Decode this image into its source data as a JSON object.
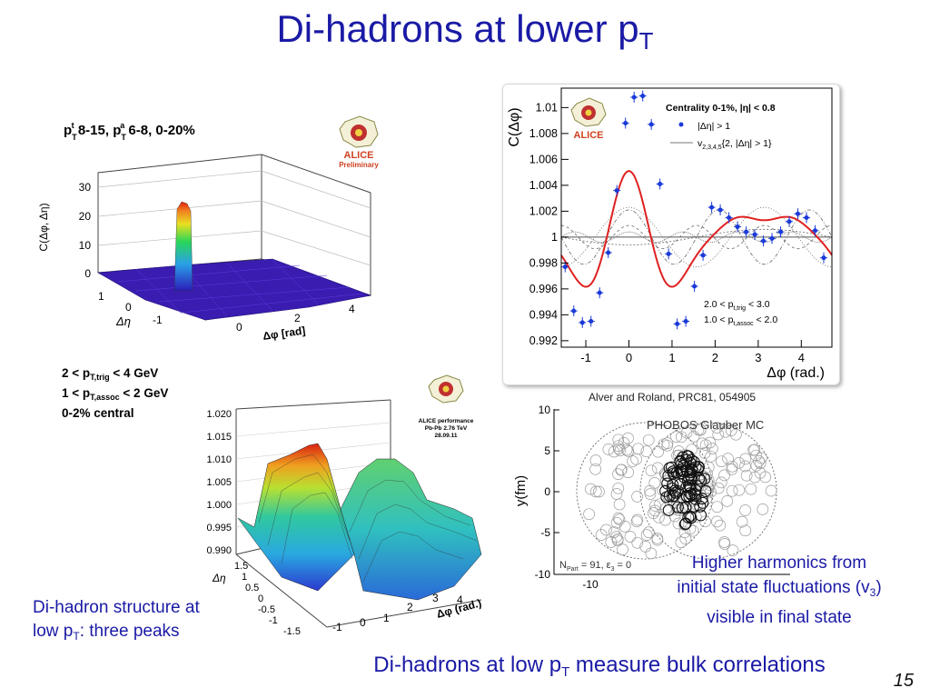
{
  "slide": {
    "title_main": "Di-hadrons at lower p",
    "title_sub": "T",
    "conclusion_main": "Di-hadrons at low p",
    "conclusion_sub": "T",
    "conclusion_tail": " measure bulk correlations",
    "page_number": "15",
    "left_caption": {
      "line1": "Di-hadron structure at",
      "line2_main": "low p",
      "line2_sub": "T",
      "line2_tail": ": three peaks"
    },
    "right_caption": {
      "line1": "Higher harmonics from",
      "line2_main": "initial state fluctuations (v",
      "line2_sub": "3",
      "line2_tail": ")",
      "line3": "visible in final state"
    },
    "reference": "Alver and Roland, PRC81, 054905",
    "cuts": {
      "l1a": "2 < p",
      "l1s": "T,trig",
      "l1b": " < 4 GeV",
      "l2a": "1 < p",
      "l2s": "T,assoc",
      "l2b": " < 2 GeV",
      "l3": "0-2% central"
    },
    "colors": {
      "title": "#1a1aa6",
      "curve": "#e02020",
      "points": "#1a3ad8"
    }
  },
  "chart_data": [
    {
      "type": "surface3d",
      "panel": "top-left",
      "title": "p_T^t 8-15, p_T^a 6-8, 0-20%",
      "title_parts": [
        "p",
        "T",
        "t",
        " 8-15, p",
        "T",
        "a",
        " 6-8, 0-20%"
      ],
      "xlabel": "Δφ [rad]",
      "ylabel": "Δη",
      "zlabel": "C(Δφ, Δη)",
      "x_ticks": [
        "0",
        "2",
        "4"
      ],
      "y_ticks": [
        "1",
        "0",
        "-1"
      ],
      "z_ticks": [
        "0",
        "10",
        "20",
        "30"
      ],
      "logo": [
        "ALICE",
        "Preliminary"
      ],
      "description_values": {
        "baseline": 1,
        "near_side_peak": 33
      }
    },
    {
      "type": "surface3d",
      "panel": "bottom-left",
      "xlabel": "Δφ (rad.)",
      "ylabel": "Δη",
      "x_ticks": [
        "-1",
        "0",
        "1",
        "2",
        "3",
        "4"
      ],
      "y_ticks": [
        "1.5",
        "1",
        "0.5",
        "0",
        "-0.5",
        "-1",
        "-1.5"
      ],
      "z_ticks": [
        "0.990",
        "0.995",
        "1.000",
        "1.005",
        "1.010",
        "1.015",
        "1.020"
      ],
      "logo": [
        "ALICE performance",
        "Pb-Pb 2.76 TeV",
        "28.09.11"
      ]
    },
    {
      "type": "line",
      "panel": "top-right",
      "xlabel": "Δφ (rad.)",
      "ylabel": "C(Δφ)",
      "xlim": [
        -1.57,
        4.71
      ],
      "ylim": [
        0.9915,
        1.0115
      ],
      "x_ticks": [
        "-1",
        "0",
        "1",
        "2",
        "3",
        "4"
      ],
      "y_ticks": [
        "0.992",
        "0.994",
        "0.996",
        "0.998",
        "1",
        "1.002",
        "1.004",
        "1.006",
        "1.008",
        "1.01"
      ],
      "legend_title": "Centrality 0-1%, |η| < 0.8",
      "legend": [
        {
          "main": "|Δη| > 1",
          "sub": ""
        },
        {
          "main": "v",
          "sub": "2,3,4,5",
          "tail": "{2, |Δη| > 1}"
        }
      ],
      "annotation": [
        {
          "a": "2.0 < p",
          "s": "t,trig",
          "b": " < 3.0"
        },
        {
          "a": "1.0 < p",
          "s": "t,assoc",
          "b": " < 2.0"
        }
      ],
      "logo": "ALICE",
      "harmonics": {
        "v1": -0.0006,
        "v2": 0.0023,
        "v3": 0.0021,
        "v4": 0.0009,
        "v5": 0.0004
      },
      "baseline": 1.0,
      "points": {
        "x": [
          -1.48,
          -1.28,
          -1.08,
          -0.88,
          -0.68,
          -0.48,
          -0.28,
          -0.08,
          0.12,
          0.32,
          0.52,
          0.72,
          0.92,
          1.12,
          1.32,
          1.52,
          1.72,
          1.92,
          2.12,
          2.32,
          2.52,
          2.72,
          2.92,
          3.12,
          3.32,
          3.52,
          3.72,
          3.92,
          4.12,
          4.32,
          4.52
        ],
        "y": [
          0.9977,
          0.9943,
          0.9934,
          0.9935,
          0.9957,
          0.9988,
          1.0036,
          1.0088,
          1.0108,
          1.0109,
          1.0087,
          1.0041,
          0.9987,
          0.9933,
          0.9935,
          0.9962,
          0.9986,
          1.0023,
          1.0021,
          1.0015,
          1.0008,
          1.0004,
          1.0002,
          0.9997,
          0.9999,
          1.0004,
          1.0012,
          1.0018,
          1.0015,
          1.0005,
          0.9984
        ]
      }
    },
    {
      "type": "scatter",
      "panel": "bottom-right",
      "title": "PHOBOS Glauber MC",
      "xlabel": "",
      "ylabel": "y(fm)",
      "y_ticks": [
        "10",
        "5",
        "0",
        "-5",
        "-10"
      ],
      "x_ticks": [
        "-10"
      ],
      "ylim": [
        -10,
        10
      ],
      "xlim": [
        -11,
        9
      ],
      "annotation": {
        "npart_a": "N",
        "npart_s": "Part",
        "npart_b": " = 91,  ε",
        "eps_s": "3",
        "eps_b": " = 0"
      }
    }
  ]
}
